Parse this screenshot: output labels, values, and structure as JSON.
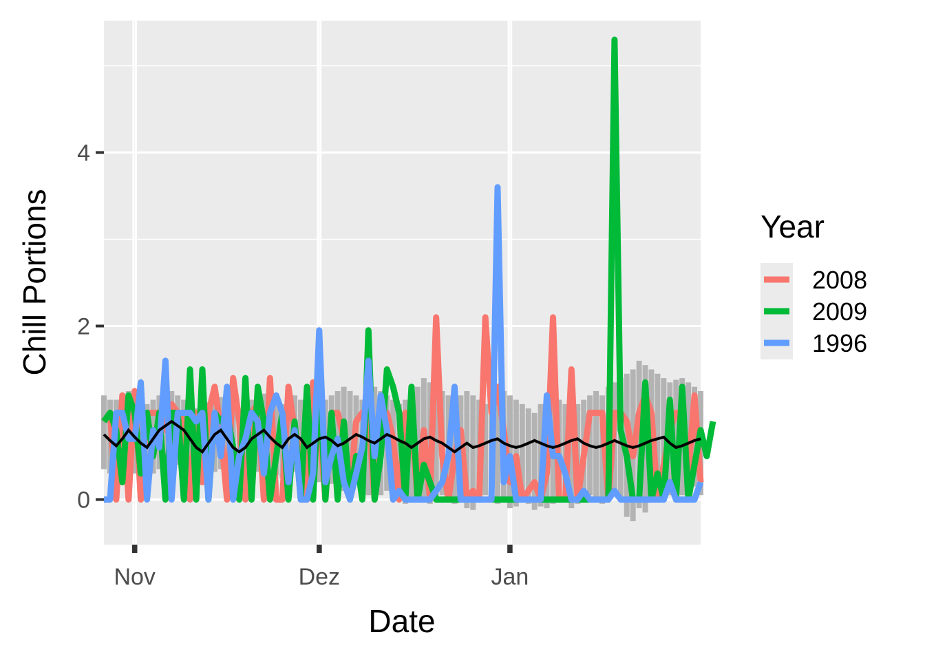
{
  "chart_data": {
    "type": "line",
    "xlabel": "Date",
    "ylabel": "Chill Portions",
    "ylim": [
      -0.52,
      5.52
    ],
    "yticks": [
      0,
      2,
      4
    ],
    "x_tick_labels": [
      "Nov",
      "Dez",
      "Jan"
    ],
    "x_tick_days": [
      5,
      35,
      66
    ],
    "x_range_days": [
      0,
      97
    ],
    "grid": true,
    "legend": {
      "title": "Year",
      "placement": "right",
      "entries": [
        "2008",
        "2009",
        "1996"
      ]
    },
    "colors": {
      "panel_bg": "#ebebeb",
      "grid": "#ffffff",
      "mean_line": "#000000",
      "range_bars": "#b3b3b3",
      "2008": "#F8766D",
      "2009": "#00BA38",
      "1996": "#619CFF"
    },
    "mean": [
      0.75,
      0.68,
      0.62,
      0.7,
      0.8,
      0.72,
      0.65,
      0.6,
      0.7,
      0.8,
      0.85,
      0.9,
      0.85,
      0.8,
      0.7,
      0.6,
      0.55,
      0.65,
      0.75,
      0.8,
      0.7,
      0.6,
      0.55,
      0.6,
      0.7,
      0.75,
      0.8,
      0.72,
      0.65,
      0.6,
      0.7,
      0.75,
      0.7,
      0.6,
      0.65,
      0.7,
      0.72,
      0.68,
      0.62,
      0.65,
      0.7,
      0.75,
      0.72,
      0.68,
      0.65,
      0.7,
      0.75,
      0.72,
      0.68,
      0.65,
      0.6,
      0.65,
      0.7,
      0.72,
      0.68,
      0.65,
      0.6,
      0.55,
      0.6,
      0.65,
      0.6,
      0.62,
      0.65,
      0.68,
      0.7,
      0.65,
      0.62,
      0.6,
      0.62,
      0.65,
      0.68,
      0.65,
      0.62,
      0.6,
      0.62,
      0.65,
      0.68,
      0.7,
      0.65,
      0.62,
      0.6,
      0.62,
      0.65,
      0.68,
      0.65,
      0.62,
      0.6,
      0.62,
      0.65,
      0.68,
      0.7,
      0.72,
      0.65,
      0.6,
      0.62,
      0.65,
      0.68,
      0.7
    ],
    "band_low": [
      0.35,
      0.3,
      0.28,
      0.32,
      0.38,
      0.3,
      0.25,
      0.22,
      0.3,
      0.35,
      0.4,
      0.42,
      0.4,
      0.35,
      0.3,
      0.25,
      0.22,
      0.28,
      0.32,
      0.35,
      0.3,
      0.25,
      0.22,
      0.25,
      0.3,
      0.32,
      0.35,
      0.3,
      0.28,
      0.25,
      0.3,
      0.32,
      0.28,
      0.22,
      0.15,
      0.2,
      0.25,
      0.18,
      0.12,
      0.1,
      0.15,
      0.2,
      0.1,
      0.05,
      0.0,
      0.05,
      0.1,
      0.05,
      0.0,
      -0.05,
      0.0,
      0.05,
      0.0,
      -0.05,
      0.0,
      0.05,
      0.0,
      -0.05,
      0.0,
      -0.1,
      -0.12,
      0.0,
      0.05,
      0.0,
      -0.05,
      0.0,
      -0.1,
      -0.08,
      0.0,
      -0.05,
      -0.12,
      -0.08,
      -0.1,
      -0.05,
      0.0,
      0.05,
      -0.1,
      -0.05,
      0.0,
      0.05,
      0.0,
      -0.05,
      0.05,
      0.1,
      0.0,
      -0.2,
      -0.25,
      -0.1,
      -0.15,
      0.0,
      0.05,
      0.1,
      0.05,
      0.0,
      0.05,
      0.1,
      0.15,
      0.05
    ],
    "band_high": [
      1.2,
      1.15,
      1.15,
      1.2,
      1.25,
      1.18,
      1.12,
      1.1,
      1.15,
      1.2,
      1.22,
      1.25,
      1.2,
      1.15,
      1.1,
      1.05,
      1.08,
      1.12,
      1.15,
      1.18,
      1.15,
      1.1,
      1.05,
      1.1,
      1.15,
      1.2,
      1.22,
      1.18,
      1.12,
      1.1,
      1.15,
      1.2,
      1.15,
      1.1,
      1.05,
      1.1,
      1.15,
      1.2,
      1.25,
      1.3,
      1.25,
      1.2,
      1.15,
      1.2,
      1.3,
      1.25,
      1.2,
      1.15,
      1.1,
      1.15,
      1.2,
      1.3,
      1.4,
      1.35,
      1.3,
      1.25,
      1.2,
      1.15,
      1.2,
      1.25,
      1.2,
      1.15,
      1.1,
      1.15,
      1.2,
      1.25,
      1.2,
      1.15,
      1.1,
      1.05,
      1.0,
      1.1,
      1.15,
      1.2,
      1.15,
      1.1,
      1.05,
      1.1,
      1.15,
      1.2,
      1.25,
      1.2,
      1.3,
      1.35,
      1.4,
      1.45,
      1.5,
      1.6,
      1.55,
      1.5,
      1.45,
      1.4,
      1.35,
      1.38,
      1.4,
      1.35,
      1.3,
      1.25
    ],
    "series": [
      {
        "name": "2008",
        "values": [
          0.9,
          1.0,
          0.0,
          1.2,
          0.0,
          1.25,
          0.0,
          1.0,
          1.0,
          1.0,
          0.8,
          1.1,
          1.0,
          0.9,
          0.0,
          1.0,
          0.2,
          1.0,
          1.3,
          0.8,
          0.0,
          1.4,
          0.9,
          0.0,
          1.0,
          1.1,
          0.0,
          1.4,
          0.0,
          0.0,
          1.3,
          0.8,
          0.5,
          0.0,
          1.35,
          0.9,
          0.0,
          1.0,
          1.0,
          0.7,
          0.1,
          0.9,
          1.0,
          1.0,
          0.0,
          0.9,
          1.0,
          0.7,
          0.0,
          1.0,
          0.9,
          0.0,
          0.8,
          0.0,
          2.1,
          0.5,
          0.0,
          0.5,
          0.8,
          0.0,
          0.1,
          0.0,
          2.1,
          1.0,
          1.3,
          0.8,
          0.2,
          0.5,
          0.0,
          0.1,
          0.2,
          0.0,
          0.3,
          2.1,
          0.0,
          0.0,
          1.5,
          0.0,
          0.5,
          1.0,
          1.0,
          1.0,
          0.0,
          1.0,
          1.0,
          0.9,
          0.5,
          1.0,
          1.2,
          1.0,
          0.0,
          0.4,
          0.8,
          1.0,
          1.0,
          0.3,
          1.2,
          0.2
        ]
      },
      {
        "name": "2009",
        "values": [
          0.9,
          1.0,
          0.8,
          0.2,
          1.2,
          1.0,
          0.3,
          1.0,
          0.5,
          1.0,
          0.0,
          1.0,
          1.0,
          0.0,
          1.5,
          0.0,
          1.5,
          0.0,
          1.0,
          0.9,
          1.0,
          0.6,
          0.0,
          1.4,
          0.0,
          1.3,
          0.9,
          0.0,
          0.5,
          1.0,
          0.0,
          0.9,
          0.0,
          1.3,
          0.0,
          1.45,
          0.0,
          1.0,
          0.0,
          0.9,
          0.0,
          0.5,
          0.0,
          1.95,
          0.0,
          0.5,
          1.5,
          1.3,
          1.0,
          0.0,
          1.3,
          0.0,
          0.4,
          0.2,
          0.0,
          0.0,
          0.0,
          0.0,
          0.0,
          0.0,
          0.0,
          0.0,
          0.0,
          0.0,
          0.0,
          0.0,
          0.0,
          0.0,
          0.0,
          0.0,
          0.0,
          0.0,
          0.0,
          0.0,
          0.0,
          0.0,
          0.0,
          0.0,
          0.0,
          0.0,
          0.0,
          0.0,
          0.0,
          5.3,
          0.8,
          0.5,
          0.0,
          0.0,
          1.35,
          0.0,
          0.3,
          0.0,
          1.15,
          0.0,
          1.3,
          0.0,
          0.4,
          0.8,
          0.5,
          0.9
        ]
      },
      {
        "name": "1996",
        "values": [
          0.0,
          0.0,
          1.0,
          1.0,
          0.7,
          0.7,
          1.35,
          0.0,
          0.8,
          0.6,
          1.6,
          0.0,
          1.0,
          1.0,
          1.0,
          0.9,
          1.0,
          0.0,
          1.0,
          0.5,
          1.3,
          0.0,
          0.5,
          0.7,
          1.0,
          0.9,
          0.3,
          1.0,
          1.2,
          1.0,
          0.2,
          0.8,
          0.0,
          0.0,
          0.3,
          1.95,
          0.2,
          0.5,
          0.7,
          0.2,
          0.0,
          0.3,
          0.6,
          1.6,
          0.5,
          1.2,
          0.8,
          0.0,
          0.1,
          0.0,
          0.0,
          0.0,
          0.0,
          0.0,
          0.1,
          0.2,
          0.5,
          1.3,
          0.0,
          0.0,
          0.0,
          0.0,
          0.0,
          0.0,
          3.6,
          0.2,
          0.5,
          0.0,
          0.0,
          0.0,
          0.0,
          0.0,
          1.2,
          0.5,
          0.5,
          0.3,
          0.0,
          0.0,
          0.1,
          0.0,
          0.0,
          0.0,
          0.0,
          0.1,
          0.0,
          0.0,
          0.0,
          0.0,
          0.0,
          0.0,
          0.0,
          0.0,
          0.2,
          0.0,
          0.0,
          0.0,
          0.0,
          0.2
        ]
      }
    ]
  }
}
